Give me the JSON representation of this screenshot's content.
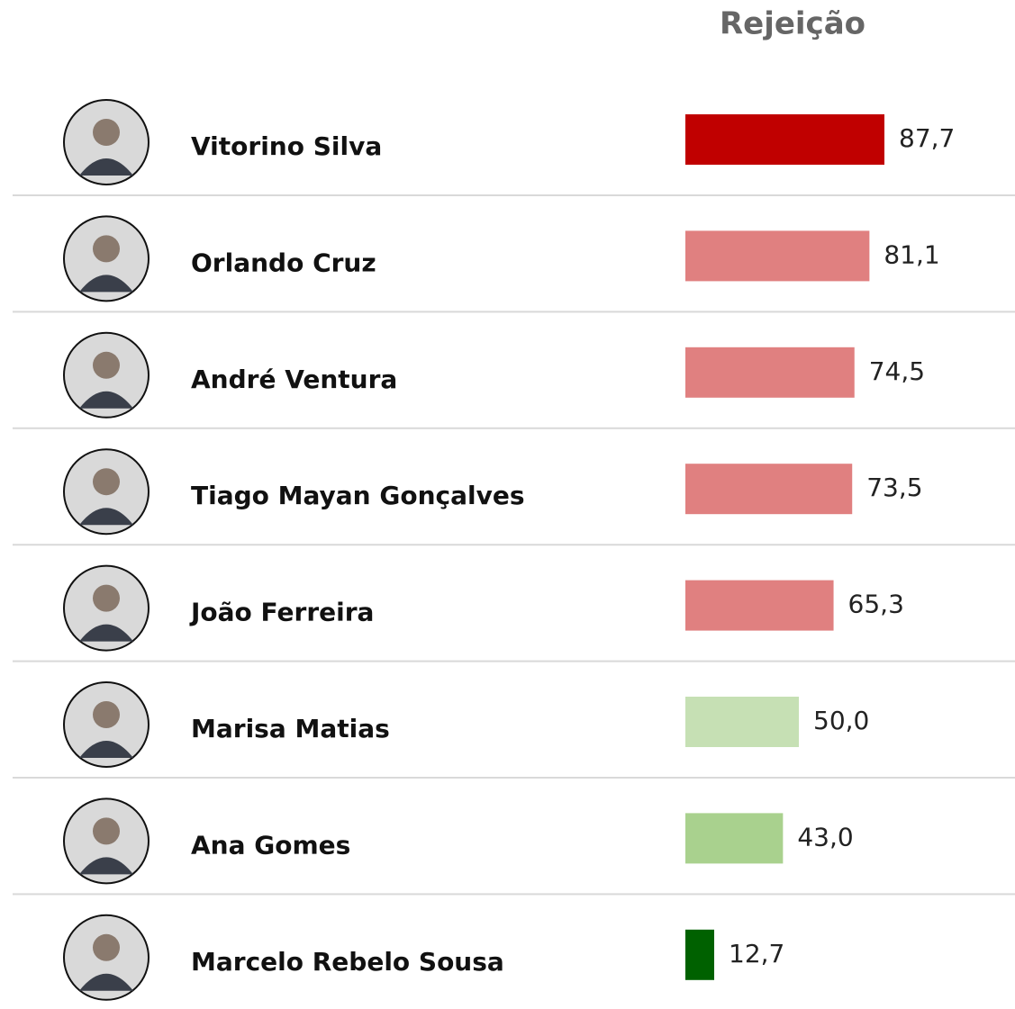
{
  "chart_data": {
    "type": "bar",
    "orientation": "horizontal",
    "title": "Rejeição",
    "categories": [
      "Vitorino Silva",
      "Orlando Cruz",
      "André Ventura",
      "Tiago Mayan Gonçalves",
      "João Ferreira",
      "Marisa Matias",
      "Ana Gomes",
      "Marcelo Rebelo Sousa"
    ],
    "values": [
      87.7,
      81.1,
      74.5,
      73.5,
      65.3,
      50.0,
      43.0,
      12.7
    ],
    "value_labels": [
      "87,7",
      "81,1",
      "74,5",
      "73,5",
      "65,3",
      "50,0",
      "43,0",
      "12,7"
    ],
    "colors": [
      "#c00000",
      "#e08080",
      "#e08080",
      "#e08080",
      "#e08080",
      "#c6e0b4",
      "#a9d18e",
      "#006100"
    ]
  }
}
